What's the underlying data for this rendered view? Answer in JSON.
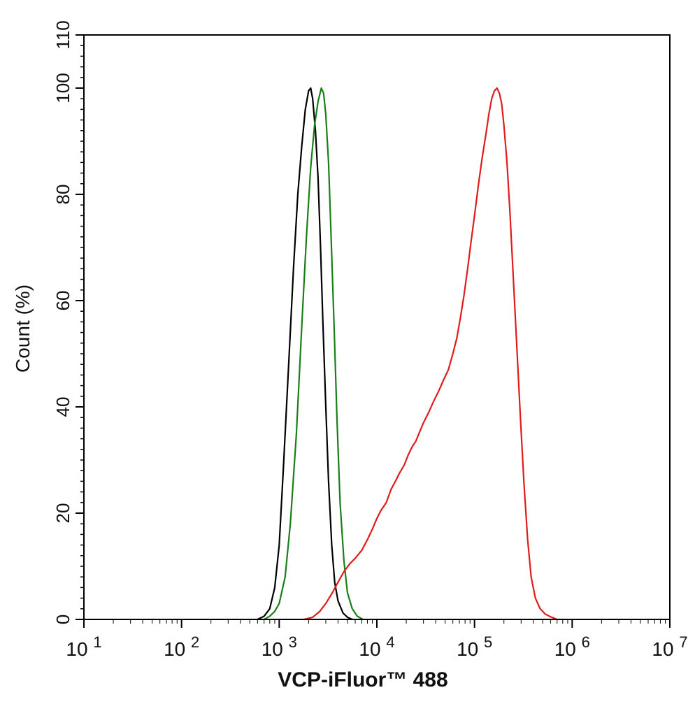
{
  "chart_data": {
    "type": "line",
    "title": "",
    "xlabel": "VCP-iFluor™ 488",
    "ylabel": "Count (%)",
    "xscale": "log10",
    "xlim": [
      10,
      10000000
    ],
    "ylim": [
      0,
      110
    ],
    "xticks": [
      {
        "value": 10,
        "base": "10",
        "exp": "1"
      },
      {
        "value": 100,
        "base": "10",
        "exp": "2"
      },
      {
        "value": 1000,
        "base": "10",
        "exp": "3"
      },
      {
        "value": 10000,
        "base": "10",
        "exp": "4"
      },
      {
        "value": 100000,
        "base": "10",
        "exp": "5"
      },
      {
        "value": 1000000,
        "base": "10",
        "exp": "6"
      },
      {
        "value": 10000000,
        "base": "10",
        "exp": "7"
      }
    ],
    "yticks": [
      0,
      20,
      40,
      60,
      80,
      100,
      110
    ],
    "ytick_labels": [
      "0",
      "20",
      "40",
      "60",
      "80",
      "100",
      "110"
    ],
    "grid": false,
    "legend": "none",
    "series": [
      {
        "color": "#000000",
        "points": [
          [
            600,
            0
          ],
          [
            700,
            0.6
          ],
          [
            800,
            2
          ],
          [
            900,
            6
          ],
          [
            1000,
            14
          ],
          [
            1100,
            28
          ],
          [
            1250,
            48
          ],
          [
            1400,
            66
          ],
          [
            1550,
            80
          ],
          [
            1700,
            89
          ],
          [
            1850,
            96
          ],
          [
            2000,
            99.5
          ],
          [
            2100,
            100
          ],
          [
            2200,
            98
          ],
          [
            2350,
            92
          ],
          [
            2500,
            83
          ],
          [
            2650,
            70
          ],
          [
            2800,
            56
          ],
          [
            3000,
            40
          ],
          [
            3200,
            26
          ],
          [
            3450,
            14
          ],
          [
            3700,
            7
          ],
          [
            4000,
            3.5
          ],
          [
            4500,
            1.2
          ],
          [
            5000,
            0.4
          ],
          [
            5600,
            0
          ]
        ]
      },
      {
        "color": "#1a7f1a",
        "points": [
          [
            700,
            0
          ],
          [
            800,
            0.6
          ],
          [
            900,
            1.5
          ],
          [
            1000,
            3
          ],
          [
            1150,
            8
          ],
          [
            1300,
            18
          ],
          [
            1500,
            35
          ],
          [
            1700,
            55
          ],
          [
            1900,
            72
          ],
          [
            2100,
            85
          ],
          [
            2300,
            93
          ],
          [
            2500,
            97.5
          ],
          [
            2700,
            100
          ],
          [
            2850,
            99
          ],
          [
            3000,
            95
          ],
          [
            3200,
            86
          ],
          [
            3400,
            72
          ],
          [
            3650,
            55
          ],
          [
            3900,
            38
          ],
          [
            4200,
            22
          ],
          [
            4600,
            11
          ],
          [
            5000,
            5
          ],
          [
            5600,
            2
          ],
          [
            6300,
            0.6
          ],
          [
            7200,
            0
          ]
        ]
      },
      {
        "color": "#e11b1b",
        "points": [
          [
            1800,
            0
          ],
          [
            2200,
            0.4
          ],
          [
            2600,
            1.5
          ],
          [
            3000,
            3
          ],
          [
            3500,
            5
          ],
          [
            4000,
            7
          ],
          [
            4600,
            9
          ],
          [
            5300,
            10.5
          ],
          [
            6000,
            11.5
          ],
          [
            7000,
            13
          ],
          [
            8000,
            15
          ],
          [
            9000,
            17
          ],
          [
            10000,
            19
          ],
          [
            11000,
            20.5
          ],
          [
            12500,
            22
          ],
          [
            14000,
            24.5
          ],
          [
            15500,
            26
          ],
          [
            17000,
            27.5
          ],
          [
            19000,
            29
          ],
          [
            21000,
            31
          ],
          [
            23000,
            32.5
          ],
          [
            25000,
            33.5
          ],
          [
            27000,
            35
          ],
          [
            30000,
            37
          ],
          [
            34000,
            39
          ],
          [
            38000,
            41
          ],
          [
            43000,
            43
          ],
          [
            48000,
            45
          ],
          [
            54000,
            47
          ],
          [
            60000,
            50
          ],
          [
            66000,
            53
          ],
          [
            72000,
            57
          ],
          [
            78000,
            61
          ],
          [
            85000,
            66
          ],
          [
            92000,
            71
          ],
          [
            100000,
            76
          ],
          [
            110000,
            82
          ],
          [
            120000,
            87
          ],
          [
            130000,
            91
          ],
          [
            140000,
            95
          ],
          [
            150000,
            98
          ],
          [
            160000,
            99.5
          ],
          [
            170000,
            100
          ],
          [
            180000,
            99
          ],
          [
            190000,
            97
          ],
          [
            200000,
            93
          ],
          [
            215000,
            86
          ],
          [
            230000,
            77
          ],
          [
            250000,
            64
          ],
          [
            270000,
            52
          ],
          [
            295000,
            38
          ],
          [
            320000,
            26
          ],
          [
            350000,
            15
          ],
          [
            380000,
            8
          ],
          [
            420000,
            4
          ],
          [
            470000,
            2
          ],
          [
            530000,
            1
          ],
          [
            600000,
            0.5
          ],
          [
            700000,
            0
          ]
        ]
      }
    ]
  }
}
